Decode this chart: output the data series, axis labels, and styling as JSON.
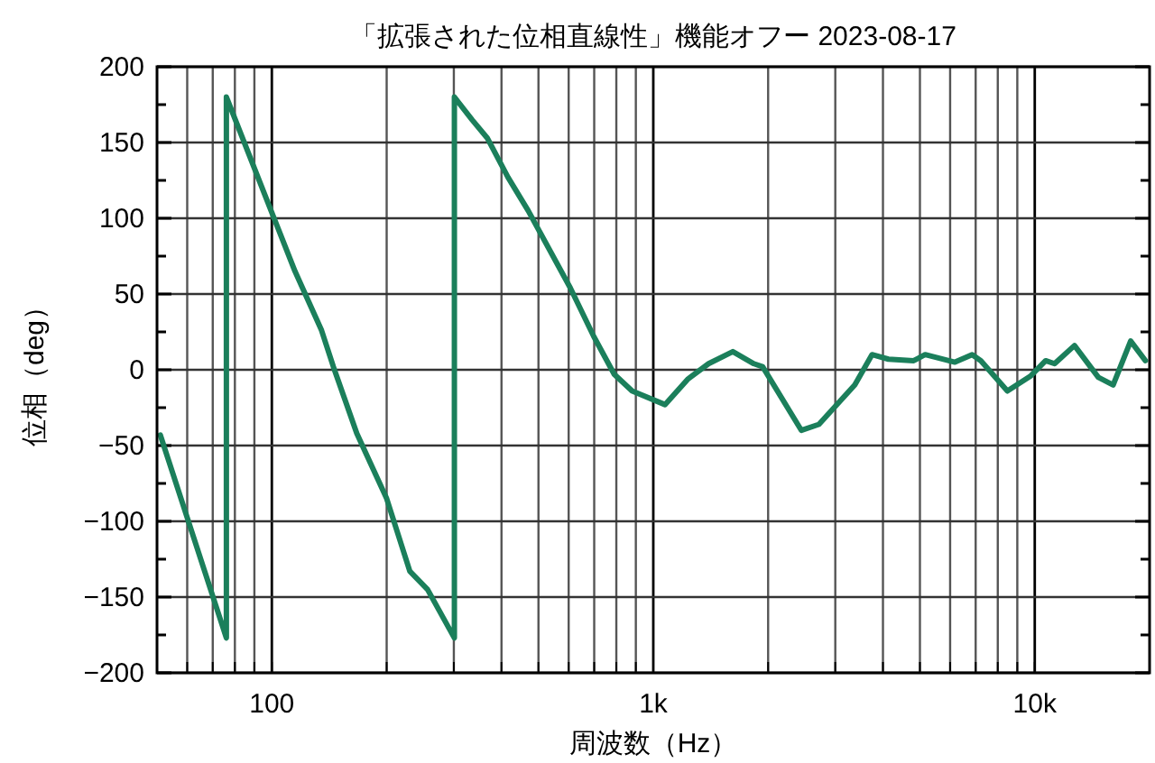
{
  "chart_data": {
    "type": "line",
    "title": "「拡張された位相直線性」機能オフー 2023-08-17",
    "xlabel": "周波数（Hz）",
    "ylabel": "位相（deg）",
    "log": "x",
    "grid": true,
    "xlim": [
      50,
      20000
    ],
    "xticks": [
      {
        "value": 60,
        "label": null
      },
      {
        "value": 70,
        "label": null
      },
      {
        "value": 80,
        "label": null
      },
      {
        "value": 90,
        "label": null
      },
      {
        "value": 100,
        "label": "100"
      },
      {
        "value": 200,
        "label": null
      },
      {
        "value": 300,
        "label": null
      },
      {
        "value": 400,
        "label": null
      },
      {
        "value": 500,
        "label": null
      },
      {
        "value": 600,
        "label": null
      },
      {
        "value": 700,
        "label": null
      },
      {
        "value": 800,
        "label": null
      },
      {
        "value": 900,
        "label": null
      },
      {
        "value": 1000,
        "label": "1k"
      },
      {
        "value": 2000,
        "label": null
      },
      {
        "value": 3000,
        "label": null
      },
      {
        "value": 4000,
        "label": null
      },
      {
        "value": 5000,
        "label": null
      },
      {
        "value": 6000,
        "label": null
      },
      {
        "value": 7000,
        "label": null
      },
      {
        "value": 8000,
        "label": null
      },
      {
        "value": 9000,
        "label": null
      },
      {
        "value": 10000,
        "label": "10k"
      }
    ],
    "ylim": [
      -200,
      200
    ],
    "yticks": [
      -200,
      {
        "value": -175,
        "label": null
      },
      -150,
      {
        "value": -125,
        "label": null
      },
      -100,
      {
        "value": -75,
        "label": null
      },
      -50,
      {
        "value": -25,
        "label": null
      },
      0,
      {
        "value": 25,
        "label": null
      },
      50,
      {
        "value": 75,
        "label": null
      },
      100,
      {
        "value": 125,
        "label": null
      },
      150,
      {
        "value": 175,
        "label": null
      },
      200
    ],
    "series": [
      {
        "color": "#1b7f5b",
        "x": [
          51,
          76,
          76,
          101,
          115,
          135,
          145,
          167,
          200,
          230,
          256,
          301,
          301,
          335,
          367,
          416,
          470,
          606,
          698,
          790,
          880,
          1073,
          1234,
          1396,
          1616,
          1835,
          1935,
          2445,
          2718,
          3375,
          3744,
          4135,
          4815,
          5159,
          6175,
          6852,
          7222,
          8477,
          9766,
          10680,
          11270,
          12710,
          14680,
          16050,
          17840,
          19500
        ],
        "values": [
          -43,
          -177,
          180,
          101,
          65,
          26,
          2,
          -42,
          -85,
          -133,
          -145,
          -177,
          180,
          165,
          153,
          127,
          105,
          54,
          22,
          -3,
          -14,
          -23,
          -6,
          4,
          12,
          4,
          2,
          -40,
          -36,
          -10,
          10,
          7,
          6,
          10,
          5,
          10,
          6,
          -14,
          -4,
          6,
          4,
          16,
          -5,
          -10,
          19,
          6
        ]
      }
    ]
  }
}
